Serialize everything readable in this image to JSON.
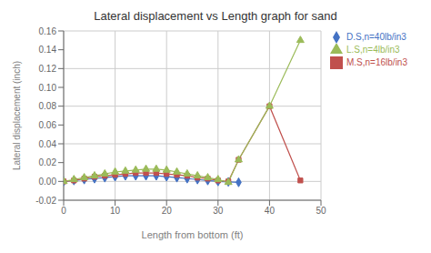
{
  "chart_data": {
    "type": "line",
    "title": "Lateral displacement vs Length graph for sand",
    "xlabel": "Length from bottom (ft)",
    "ylabel": "Lateral displacement (inch)",
    "xlim": [
      0,
      50
    ],
    "ylim": [
      -0.02,
      0.16
    ],
    "xticks": [
      0,
      10,
      20,
      30,
      40,
      50
    ],
    "yticks": [
      -0.02,
      {
        "value": 0.0,
        "label": "0.00"
      },
      0.02,
      0.04,
      0.06,
      0.08,
      {
        "value": 0.1,
        "label": "0.10"
      },
      0.12,
      0.14,
      0.16
    ],
    "grid": true,
    "legend": "right",
    "series": [
      {
        "name": "D.S,n=40lb/in3",
        "color": "#4472C4",
        "marker": "diamond",
        "x": [
          0,
          2,
          4,
          6,
          8,
          10,
          12,
          14,
          16,
          18,
          20,
          22,
          24,
          26,
          28,
          30,
          32,
          34
        ],
        "values": [
          0.0,
          0.001,
          0.002,
          0.003,
          0.004,
          0.005,
          0.006,
          0.006,
          0.006,
          0.006,
          0.005,
          0.004,
          0.003,
          0.002,
          0.001,
          0.0,
          -0.0005,
          -0.001
        ]
      },
      {
        "name": "M.S,n=16lb/in3",
        "color": "#C0504D",
        "marker": "square",
        "x": [
          0,
          2,
          4,
          6,
          8,
          10,
          12,
          14,
          16,
          18,
          20,
          22,
          24,
          26,
          28,
          30,
          32,
          34,
          40,
          46
        ],
        "values": [
          0.0,
          0.001,
          0.003,
          0.005,
          0.006,
          0.007,
          0.008,
          0.009,
          0.009,
          0.009,
          0.008,
          0.007,
          0.006,
          0.004,
          0.003,
          0.001,
          0.0,
          0.023,
          0.08,
          0.001
        ]
      },
      {
        "name": "L.S,n=4lb/in3",
        "color": "#9BBB59",
        "marker": "triangle",
        "x": [
          0,
          2,
          4,
          6,
          8,
          10,
          12,
          14,
          16,
          18,
          20,
          22,
          24,
          26,
          28,
          30,
          32,
          34,
          40,
          46
        ],
        "values": [
          0.0,
          0.002,
          0.004,
          0.006,
          0.008,
          0.01,
          0.011,
          0.012,
          0.013,
          0.013,
          0.012,
          0.01,
          0.008,
          0.006,
          0.004,
          0.002,
          -0.001,
          0.023,
          0.08,
          0.15
        ]
      }
    ]
  }
}
